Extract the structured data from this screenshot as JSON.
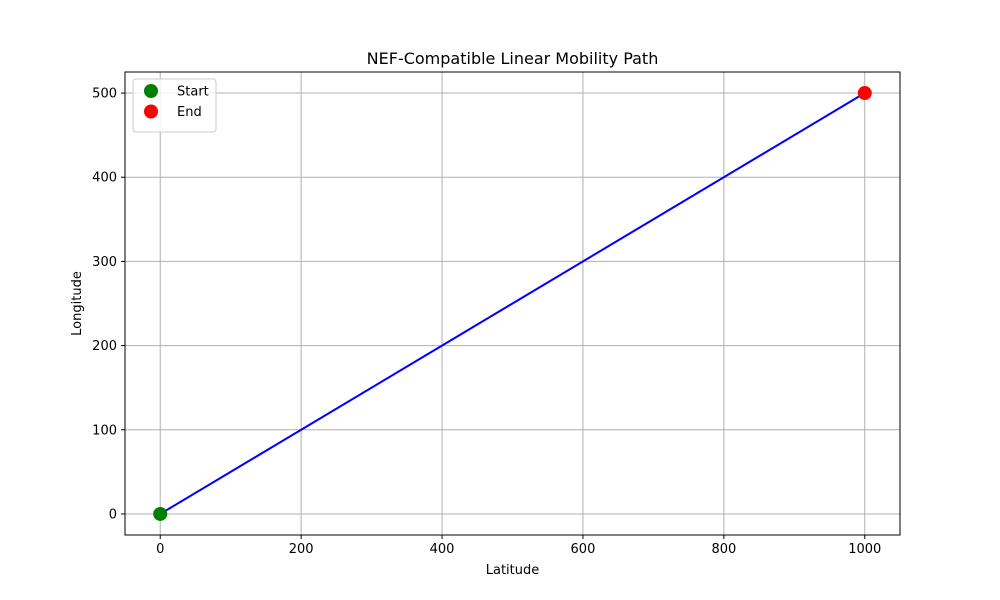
{
  "chart_data": {
    "type": "line",
    "title": "NEF-Compatible Linear Mobility Path",
    "xlabel": "Latitude",
    "ylabel": "Longitude",
    "xlim": [
      -50,
      1050
    ],
    "ylim": [
      -25,
      525
    ],
    "xticks": [
      0,
      200,
      400,
      600,
      800,
      1000
    ],
    "yticks": [
      0,
      100,
      200,
      300,
      400,
      500
    ],
    "grid": true,
    "legend_position": "upper-left",
    "series": [
      {
        "x": [
          0,
          1000
        ],
        "y": [
          0,
          500
        ],
        "color": "#0000ff",
        "style": "line"
      }
    ],
    "markers": [
      {
        "name": "Start",
        "x": 0,
        "y": 0,
        "color": "#008000"
      },
      {
        "name": "End",
        "x": 1000,
        "y": 500,
        "color": "#ff0000"
      }
    ],
    "legend": [
      "Start",
      "End"
    ]
  }
}
